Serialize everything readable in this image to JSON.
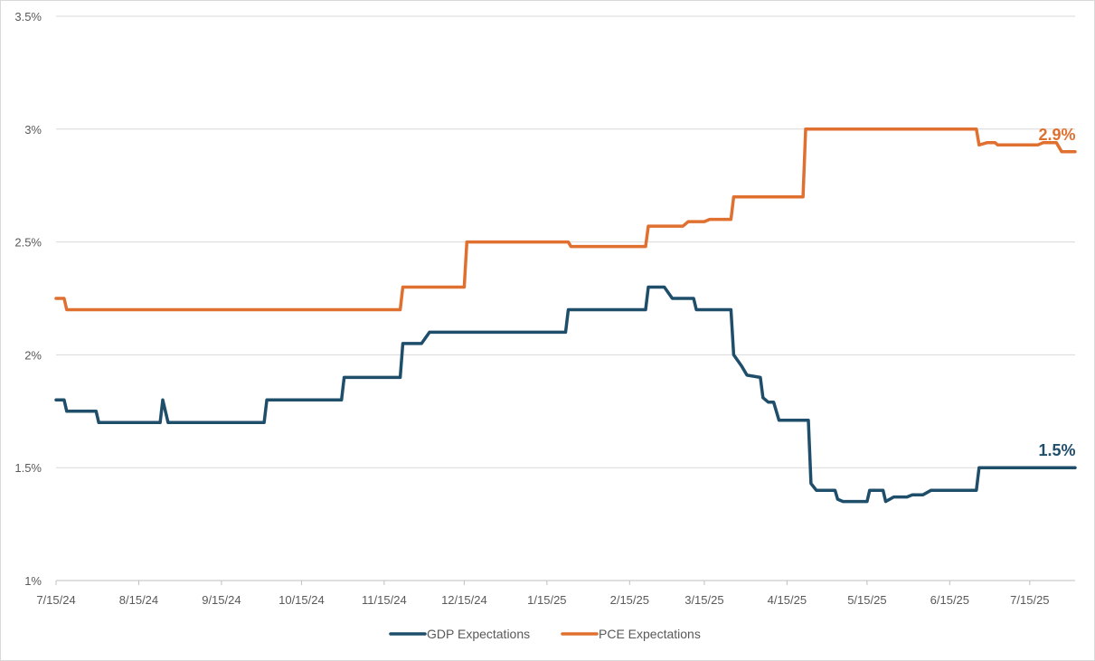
{
  "chart_data": {
    "type": "line",
    "title": "",
    "xlabel": "",
    "ylabel": "",
    "x_tick_labels": [
      "7/15/24",
      "8/15/24",
      "9/15/24",
      "10/15/24",
      "11/15/24",
      "12/15/24",
      "1/15/25",
      "2/15/25",
      "3/15/25",
      "4/15/25",
      "5/15/25",
      "6/15/25",
      "7/15/25"
    ],
    "y_tick_labels": [
      "1%",
      "1.5%",
      "2%",
      "2.5%",
      "3%",
      "3.5%"
    ],
    "ylim": [
      1.0,
      3.5
    ],
    "xlim": [
      "2024-07-15",
      "2025-08-01"
    ],
    "grid": true,
    "legend_position": "bottom",
    "series": [
      {
        "name": "GDP Expectations",
        "color": "#1f4e6b",
        "end_label": "1.5%",
        "points": [
          [
            "2024-07-15",
            1.8
          ],
          [
            "2024-07-18",
            1.8
          ],
          [
            "2024-07-19",
            1.75
          ],
          [
            "2024-07-30",
            1.75
          ],
          [
            "2024-07-31",
            1.7
          ],
          [
            "2024-08-23",
            1.7
          ],
          [
            "2024-08-24",
            1.8
          ],
          [
            "2024-08-26",
            1.7
          ],
          [
            "2024-10-01",
            1.7
          ],
          [
            "2024-10-02",
            1.8
          ],
          [
            "2024-10-30",
            1.8
          ],
          [
            "2024-10-31",
            1.9
          ],
          [
            "2024-11-21",
            1.9
          ],
          [
            "2024-11-22",
            2.05
          ],
          [
            "2024-11-29",
            2.05
          ],
          [
            "2024-12-02",
            2.1
          ],
          [
            "2025-01-22",
            2.1
          ],
          [
            "2025-01-23",
            2.2
          ],
          [
            "2025-02-21",
            2.2
          ],
          [
            "2025-02-22",
            2.3
          ],
          [
            "2025-02-28",
            2.3
          ],
          [
            "2025-03-03",
            2.25
          ],
          [
            "2025-03-11",
            2.25
          ],
          [
            "2025-03-12",
            2.2
          ],
          [
            "2025-03-25",
            2.2
          ],
          [
            "2025-03-26",
            2.0
          ],
          [
            "2025-03-29",
            1.95
          ],
          [
            "2025-03-31",
            1.91
          ],
          [
            "2025-04-05",
            1.9
          ],
          [
            "2025-04-06",
            1.81
          ],
          [
            "2025-04-08",
            1.79
          ],
          [
            "2025-04-10",
            1.79
          ],
          [
            "2025-04-12",
            1.71
          ],
          [
            "2025-04-23",
            1.71
          ],
          [
            "2025-04-24",
            1.43
          ],
          [
            "2025-04-26",
            1.4
          ],
          [
            "2025-05-03",
            1.4
          ],
          [
            "2025-05-04",
            1.36
          ],
          [
            "2025-05-06",
            1.35
          ],
          [
            "2025-05-15",
            1.35
          ],
          [
            "2025-05-16",
            1.4
          ],
          [
            "2025-05-21",
            1.4
          ],
          [
            "2025-05-22",
            1.35
          ],
          [
            "2025-05-25",
            1.37
          ],
          [
            "2025-05-30",
            1.37
          ],
          [
            "2025-06-01",
            1.38
          ],
          [
            "2025-06-05",
            1.38
          ],
          [
            "2025-06-08",
            1.4
          ],
          [
            "2025-06-25",
            1.4
          ],
          [
            "2025-06-26",
            1.5
          ],
          [
            "2025-08-01",
            1.5
          ]
        ]
      },
      {
        "name": "PCE Expectations",
        "color": "#e07030",
        "end_label": "2.9%",
        "points": [
          [
            "2024-07-15",
            2.25
          ],
          [
            "2024-07-18",
            2.25
          ],
          [
            "2024-07-19",
            2.2
          ],
          [
            "2024-11-21",
            2.2
          ],
          [
            "2024-11-22",
            2.3
          ],
          [
            "2024-12-15",
            2.3
          ],
          [
            "2024-12-16",
            2.5
          ],
          [
            "2025-01-23",
            2.5
          ],
          [
            "2025-01-24",
            2.48
          ],
          [
            "2025-02-21",
            2.48
          ],
          [
            "2025-02-22",
            2.57
          ],
          [
            "2025-03-07",
            2.57
          ],
          [
            "2025-03-09",
            2.59
          ],
          [
            "2025-03-15",
            2.59
          ],
          [
            "2025-03-17",
            2.6
          ],
          [
            "2025-03-25",
            2.6
          ],
          [
            "2025-03-26",
            2.7
          ],
          [
            "2025-04-21",
            2.7
          ],
          [
            "2025-04-22",
            3.0
          ],
          [
            "2025-06-25",
            3.0
          ],
          [
            "2025-06-26",
            2.93
          ],
          [
            "2025-06-29",
            2.94
          ],
          [
            "2025-07-02",
            2.94
          ],
          [
            "2025-07-03",
            2.93
          ],
          [
            "2025-07-18",
            2.93
          ],
          [
            "2025-07-20",
            2.94
          ],
          [
            "2025-07-25",
            2.94
          ],
          [
            "2025-07-27",
            2.9
          ],
          [
            "2025-08-01",
            2.9
          ]
        ]
      }
    ]
  }
}
